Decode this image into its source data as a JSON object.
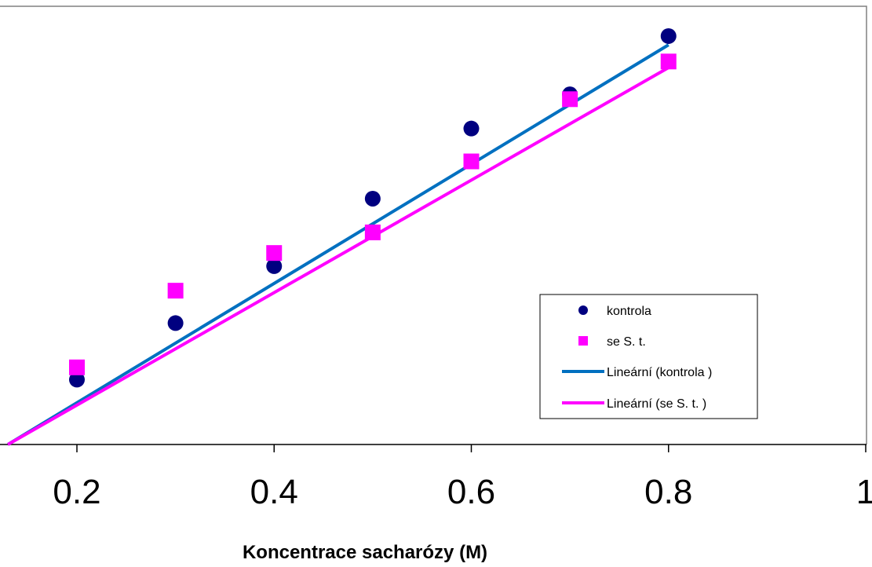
{
  "chart_data": {
    "type": "scatter",
    "title": "",
    "xlabel": "Koncentrace sacharózy (M)",
    "ylabel": "",
    "xlim": [
      0.13,
      1.0
    ],
    "ylim": [
      0.0,
      1.0
    ],
    "x_ticks": [
      0.2,
      0.4,
      0.6,
      0.8,
      1.0
    ],
    "x_tick_labels": [
      "0.2",
      "0.4",
      "0.6",
      "0.8",
      "1"
    ],
    "grid": false,
    "legend_position": "bottom-right",
    "series": [
      {
        "name": "kontrola",
        "kind": "points",
        "marker": "circle",
        "color": "#000080",
        "x": [
          0.2,
          0.3,
          0.4,
          0.5,
          0.6,
          0.7,
          0.8
        ],
        "y": [
          0.148,
          0.277,
          0.407,
          0.561,
          0.721,
          0.799,
          0.932
        ]
      },
      {
        "name": "se S. t.",
        "kind": "points",
        "marker": "square",
        "color": "#FF00FF",
        "x": [
          0.2,
          0.3,
          0.4,
          0.5,
          0.6,
          0.7,
          0.8
        ],
        "y": [
          0.176,
          0.351,
          0.437,
          0.484,
          0.646,
          0.788,
          0.874
        ]
      },
      {
        "name": "Lineární (kontrola )",
        "kind": "trendline",
        "color": "#0070C0",
        "x": [
          0.13,
          0.8
        ],
        "y": [
          0.0,
          0.912
        ]
      },
      {
        "name": "Lineární (se S. t. )",
        "kind": "trendline",
        "color": "#FF00FF",
        "x": [
          0.13,
          0.8
        ],
        "y": [
          0.0,
          0.86
        ]
      }
    ]
  }
}
